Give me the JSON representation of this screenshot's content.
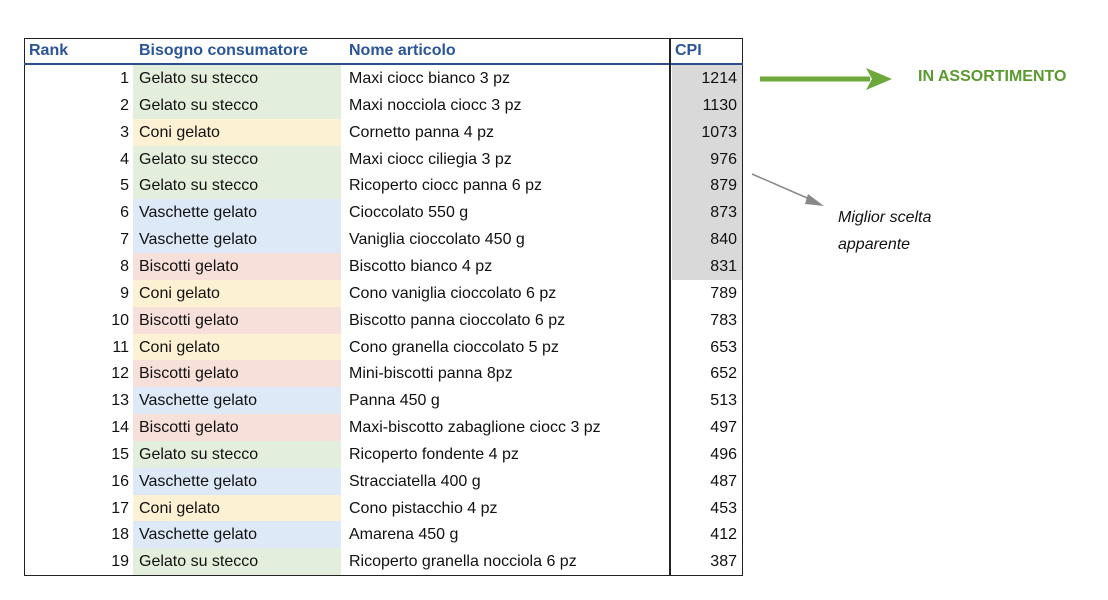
{
  "table": {
    "headers": {
      "rank": "Rank",
      "bisogno": "Bisogno consumatore",
      "nome": "Nome articolo",
      "cpi": "CPI"
    },
    "rows": [
      {
        "rank": "1",
        "bisogno": "Gelato su stecco",
        "nome": "Maxi ciocc bianco 3 pz",
        "cpi": "1214"
      },
      {
        "rank": "2",
        "bisogno": "Gelato su stecco",
        "nome": "Maxi nocciola ciocc 3 pz",
        "cpi": "1130"
      },
      {
        "rank": "3",
        "bisogno": "Coni gelato",
        "nome": "Cornetto panna  4 pz",
        "cpi": "1073"
      },
      {
        "rank": "4",
        "bisogno": "Gelato su stecco",
        "nome": "Maxi ciocc ciliegia 3 pz",
        "cpi": "976"
      },
      {
        "rank": "5",
        "bisogno": "Gelato su stecco",
        "nome": "Ricoperto ciocc panna 6 pz",
        "cpi": "879"
      },
      {
        "rank": "6",
        "bisogno": "Vaschette gelato",
        "nome": "Cioccolato 550 g",
        "cpi": "873"
      },
      {
        "rank": "7",
        "bisogno": "Vaschette gelato",
        "nome": "Vaniglia cioccolato 450 g",
        "cpi": "840"
      },
      {
        "rank": "8",
        "bisogno": "Biscotti gelato",
        "nome": "Biscotto bianco 4 pz",
        "cpi": "831"
      },
      {
        "rank": "9",
        "bisogno": "Coni gelato",
        "nome": "Cono vaniglia cioccolato 6 pz",
        "cpi": "789"
      },
      {
        "rank": "10",
        "bisogno": "Biscotti gelato",
        "nome": "Biscotto panna cioccolato 6 pz",
        "cpi": "783"
      },
      {
        "rank": "11",
        "bisogno": "Coni gelato",
        "nome": "Cono granella cioccolato 5 pz",
        "cpi": "653"
      },
      {
        "rank": "12",
        "bisogno": "Biscotti gelato",
        "nome": "Mini-biscotti panna 8pz",
        "cpi": "652"
      },
      {
        "rank": "13",
        "bisogno": "Vaschette gelato",
        "nome": "Panna 450 g",
        "cpi": "513"
      },
      {
        "rank": "14",
        "bisogno": "Biscotti gelato",
        "nome": "Maxi-biscotto zabaglione ciocc 3 pz",
        "cpi": "497"
      },
      {
        "rank": "15",
        "bisogno": "Gelato su stecco",
        "nome": "Ricoperto fondente 4 pz",
        "cpi": "496"
      },
      {
        "rank": "16",
        "bisogno": "Vaschette gelato",
        "nome": "Stracciatella 400 g",
        "cpi": "487"
      },
      {
        "rank": "17",
        "bisogno": "Coni gelato",
        "nome": "Cono pistacchio 4 pz",
        "cpi": "453"
      },
      {
        "rank": "18",
        "bisogno": "Vaschette gelato",
        "nome": "Amarena 450 g",
        "cpi": "412"
      },
      {
        "rank": "19",
        "bisogno": "Gelato su stecco",
        "nome": "Ricoperto granella nocciola 6 pz",
        "cpi": "387"
      }
    ],
    "highlighted_count": 8
  },
  "category_colors": {
    "Gelato su stecco": "#e3efdc",
    "Coni gelato": "#fdf1d3",
    "Vaschette gelato": "#dde9f6",
    "Biscotti gelato": "#f8e0da"
  },
  "cpi_highlight_color": "#d9d9d9",
  "header_color": "#2a5599",
  "annotations": {
    "assortimento": "IN ASSORTIMENTO",
    "assortimento_color": "#5b9a2f",
    "note_line1": "Miglior scelta",
    "note_line2": "apparente"
  }
}
